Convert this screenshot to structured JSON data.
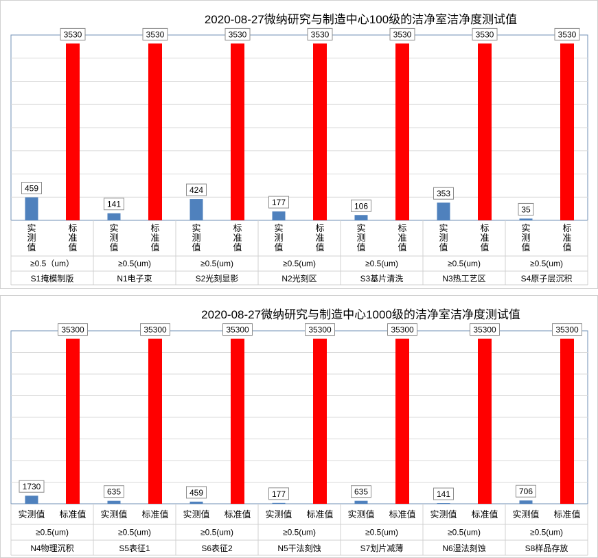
{
  "charts": [
    {
      "title": "2020-08-27微纳研究与制造中心100级的洁净室洁净度测试值",
      "series_labels": [
        "实测值",
        "标准值"
      ],
      "label_orientation": "vertical",
      "groups": [
        {
          "particle": "≥0.5（um）",
          "area": "S1掩模制版",
          "measured": 459,
          "standard": 3530
        },
        {
          "particle": "≥0.5(um)",
          "area": "N1电子束",
          "measured": 141,
          "standard": 3530
        },
        {
          "particle": "≥0.5(um)",
          "area": "S2光刻显影",
          "measured": 424,
          "standard": 3530
        },
        {
          "particle": "≥0.5(um)",
          "area": "N2光刻区",
          "measured": 177,
          "standard": 3530
        },
        {
          "particle": "≥0.5(um)",
          "area": "S3基片清洗",
          "measured": 106,
          "standard": 3530
        },
        {
          "particle": "≥0.5(um)",
          "area": "N3热工艺区",
          "measured": 353,
          "standard": 3530
        },
        {
          "particle": "≥0.5(um)",
          "area": "S4原子层沉积",
          "measured": 35,
          "standard": 3530
        }
      ]
    },
    {
      "title": "2020-08-27微纳研究与制造中心1000级的洁净室洁净度测试值",
      "series_labels": [
        "实测值",
        "标准值"
      ],
      "label_orientation": "horizontal",
      "groups": [
        {
          "particle": "≥0.5(um)",
          "area": "N4物理沉积",
          "measured": 1730,
          "standard": 35300
        },
        {
          "particle": "≥0.5(um)",
          "area": "S5表征1",
          "measured": 635,
          "standard": 35300
        },
        {
          "particle": "≥0.5(um)",
          "area": "S6表征2",
          "measured": 459,
          "standard": 35300
        },
        {
          "particle": "≥0.5(um)",
          "area": "N5干法刻蚀",
          "measured": 177,
          "standard": 35300
        },
        {
          "particle": "≥0.5(um)",
          "area": "S7划片减薄",
          "measured": 635,
          "standard": 35300
        },
        {
          "particle": "≥0.5(um)",
          "area": "N6湿法刻蚀",
          "measured": 141,
          "standard": 35300
        },
        {
          "particle": "≥0.5(um)",
          "area": "S8样品存放",
          "measured": 706,
          "standard": 35300
        }
      ]
    }
  ],
  "chart_data": [
    {
      "type": "bar",
      "title": "2020-08-27微纳研究与制造中心100级的洁净室洁净度测试值",
      "categories": [
        "S1掩模制版",
        "N1电子束",
        "S2光刻显影",
        "N2光刻区",
        "S3基片清洗",
        "N3热工艺区",
        "S4原子层沉积"
      ],
      "series": [
        {
          "name": "实测值",
          "values": [
            459,
            141,
            424,
            177,
            106,
            353,
            35
          ],
          "color": "#4f81bd"
        },
        {
          "name": "标准值",
          "values": [
            3530,
            3530,
            3530,
            3530,
            3530,
            3530,
            3530
          ],
          "color": "#ff0000"
        }
      ],
      "ylim": [
        0,
        3700
      ],
      "grid": true
    },
    {
      "type": "bar",
      "title": "2020-08-27微纳研究与制造中心1000级的洁净室洁净度测试值",
      "categories": [
        "N4物理沉积",
        "S5表征1",
        "S6表征2",
        "N5干法刻蚀",
        "S7划片减薄",
        "N6湿法刻蚀",
        "S8样品存放"
      ],
      "series": [
        {
          "name": "实测值",
          "values": [
            1730,
            635,
            459,
            177,
            635,
            141,
            706
          ],
          "color": "#4f81bd"
        },
        {
          "name": "标准值",
          "values": [
            35300,
            35300,
            35300,
            35300,
            35300,
            35300,
            35300
          ],
          "color": "#ff0000"
        }
      ],
      "ylim": [
        0,
        37000
      ],
      "grid": true
    }
  ]
}
